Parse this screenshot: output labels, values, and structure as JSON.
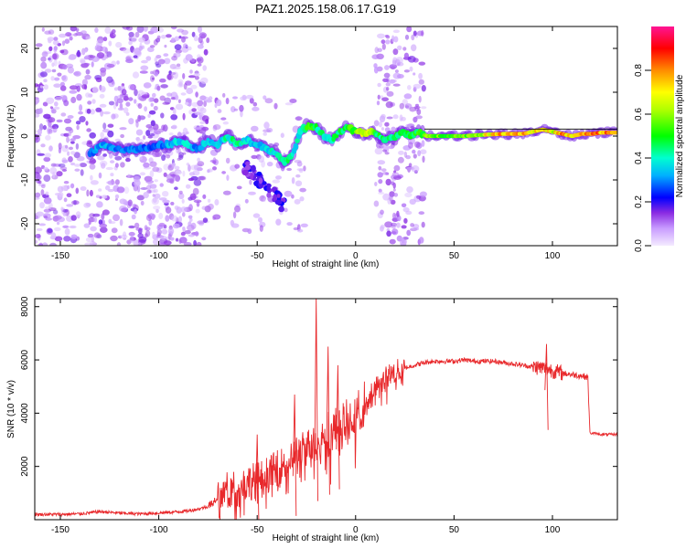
{
  "title": "PAZ1.2025.158.06.17.G19",
  "chart_data": [
    {
      "type": "heatmap",
      "xlabel": "Height of straight line (km)",
      "ylabel": "Frequency (Hz)",
      "xlim": [
        -163,
        133
      ],
      "ylim": [
        -25,
        25
      ],
      "xticks": [
        -150,
        -100,
        -50,
        0,
        50,
        100
      ],
      "yticks": [
        -20,
        -10,
        0,
        10,
        20
      ],
      "colorbar": {
        "label": "Normalized spectral amplitude",
        "range": [
          0,
          1
        ],
        "ticks": [
          "0.0",
          "0.2",
          "0.4",
          "0.6",
          "0.8"
        ],
        "colors": [
          "#f0e0ff",
          "#a040ff",
          "#0000ff",
          "#00e5ff",
          "#00ff40",
          "#ffff00",
          "#ff8000",
          "#ff0000",
          "#ff0080"
        ]
      },
      "ridge": [
        {
          "x": -135,
          "y": -4,
          "a": 0.3
        },
        {
          "x": -128,
          "y": -2,
          "a": 0.35
        },
        {
          "x": -120,
          "y": -3,
          "a": 0.3
        },
        {
          "x": -110,
          "y": -3,
          "a": 0.3
        },
        {
          "x": -100,
          "y": -2,
          "a": 0.3
        },
        {
          "x": -95,
          "y": -2,
          "a": 0.35
        },
        {
          "x": -90,
          "y": -1,
          "a": 0.4
        },
        {
          "x": -85,
          "y": -2,
          "a": 0.4
        },
        {
          "x": -80,
          "y": -3,
          "a": 0.3
        },
        {
          "x": -75,
          "y": -1,
          "a": 0.4
        },
        {
          "x": -70,
          "y": -2,
          "a": 0.35
        },
        {
          "x": -65,
          "y": 0,
          "a": 0.45
        },
        {
          "x": -60,
          "y": -2,
          "a": 0.45
        },
        {
          "x": -55,
          "y": -1,
          "a": 0.4
        },
        {
          "x": -50,
          "y": -2,
          "a": 0.35
        },
        {
          "x": -45,
          "y": -3,
          "a": 0.4
        },
        {
          "x": -40,
          "y": -4,
          "a": 0.45
        },
        {
          "x": -36,
          "y": -6,
          "a": 0.5
        },
        {
          "x": -32,
          "y": -4,
          "a": 0.4
        },
        {
          "x": -28,
          "y": 1,
          "a": 0.45
        },
        {
          "x": -24,
          "y": 2.5,
          "a": 0.55
        },
        {
          "x": -20,
          "y": 2,
          "a": 0.5
        },
        {
          "x": -16,
          "y": 0,
          "a": 0.45
        },
        {
          "x": -12,
          "y": -1,
          "a": 0.45
        },
        {
          "x": -8,
          "y": 1,
          "a": 0.5
        },
        {
          "x": -4,
          "y": 2,
          "a": 0.55
        },
        {
          "x": 0,
          "y": 1,
          "a": 0.6
        },
        {
          "x": 4,
          "y": 0.5,
          "a": 0.75
        },
        {
          "x": 8,
          "y": 1,
          "a": 0.6
        },
        {
          "x": 12,
          "y": 0,
          "a": 0.5
        },
        {
          "x": 16,
          "y": -1,
          "a": 0.45
        },
        {
          "x": 20,
          "y": 0,
          "a": 0.5
        },
        {
          "x": 24,
          "y": 1,
          "a": 0.55
        },
        {
          "x": 28,
          "y": 0,
          "a": 0.5
        },
        {
          "x": 32,
          "y": 1,
          "a": 0.55
        },
        {
          "x": 36,
          "y": 0,
          "a": 0.6
        },
        {
          "x": 45,
          "y": 0,
          "a": 0.6
        },
        {
          "x": 55,
          "y": 0,
          "a": 0.6
        },
        {
          "x": 65,
          "y": 0.3,
          "a": 0.7
        },
        {
          "x": 75,
          "y": 0.5,
          "a": 0.85
        },
        {
          "x": 85,
          "y": 0.5,
          "a": 0.85
        },
        {
          "x": 90,
          "y": 1,
          "a": 0.75
        },
        {
          "x": 95,
          "y": 1.5,
          "a": 0.8
        },
        {
          "x": 100,
          "y": 1,
          "a": 0.7
        },
        {
          "x": 105,
          "y": 0.5,
          "a": 0.85
        },
        {
          "x": 110,
          "y": 0,
          "a": 0.75
        },
        {
          "x": 115,
          "y": 0.5,
          "a": 0.8
        },
        {
          "x": 120,
          "y": 0.5,
          "a": 0.85
        },
        {
          "x": 125,
          "y": 0.8,
          "a": 0.85
        },
        {
          "x": 133,
          "y": 0.8,
          "a": 0.85
        }
      ]
    },
    {
      "type": "line",
      "xlabel": "Height of straight line (km)",
      "ylabel": "SNR (10 * v/v)",
      "xlim": [
        -163,
        133
      ],
      "ylim": [
        0,
        8300
      ],
      "xticks": [
        -150,
        -100,
        -50,
        0,
        50,
        100
      ],
      "yticks": [
        2000,
        4000,
        6000,
        8000
      ],
      "color": "#e8282b",
      "series": [
        {
          "x": [
            -163,
            -150,
            -140,
            -130,
            -120,
            -110,
            -100,
            -90,
            -85,
            -80,
            -75,
            -72,
            -70,
            -65,
            -60,
            -55,
            -50,
            -45,
            -40,
            -35,
            -30,
            -25,
            -22,
            -20,
            -18,
            -15,
            -10,
            -5,
            0,
            5,
            10,
            15,
            20,
            25,
            30,
            35,
            40,
            45,
            50,
            55,
            60,
            65,
            70,
            75,
            80,
            85,
            90,
            95,
            98,
            100,
            105,
            110,
            115,
            118,
            119,
            120,
            125,
            133
          ],
          "y": [
            200,
            200,
            220,
            300,
            250,
            220,
            250,
            300,
            330,
            400,
            500,
            700,
            900,
            1100,
            1200,
            1400,
            1500,
            1700,
            1900,
            2200,
            2500,
            2700,
            2900,
            3000,
            3100,
            3200,
            3400,
            3600,
            3900,
            4400,
            4900,
            5300,
            5550,
            5700,
            5800,
            5900,
            5950,
            5950,
            5950,
            6000,
            5950,
            5950,
            5950,
            5900,
            5850,
            5800,
            5750,
            5700,
            5650,
            5600,
            5500,
            5450,
            5400,
            5350,
            3250,
            3250,
            3200,
            3200
          ]
        }
      ],
      "spikes": [
        {
          "x": -20,
          "y": 8300
        },
        {
          "x": -14,
          "y": 6500
        },
        {
          "x": -9,
          "y": 5800
        },
        {
          "x": -31,
          "y": 4700
        },
        {
          "x": -50,
          "y": 3200
        },
        {
          "x": 97,
          "y": 6600
        }
      ]
    }
  ]
}
